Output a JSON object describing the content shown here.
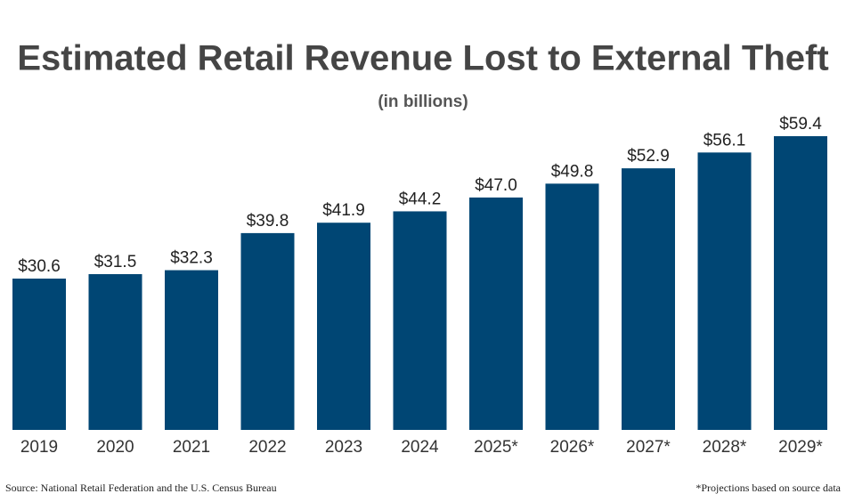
{
  "chart_data": {
    "type": "bar",
    "title": "Estimated Retail Revenue Lost to External Theft",
    "subtitle": "(in billions)",
    "categories": [
      "2019",
      "2020",
      "2021",
      "2022",
      "2023",
      "2024",
      "2025*",
      "2026*",
      "2027*",
      "2028*",
      "2029*"
    ],
    "values": [
      30.6,
      31.5,
      32.3,
      39.8,
      41.9,
      44.2,
      47.0,
      49.8,
      52.9,
      56.1,
      59.4
    ],
    "value_labels": [
      "$30.6",
      "$31.5",
      "$32.3",
      "$39.8",
      "$41.9",
      "$44.2",
      "$47.0",
      "$49.8",
      "$52.9",
      "$56.1",
      "$59.4"
    ],
    "color": "#004674",
    "source": "Source: National Retail Federation and the U.S. Census Bureau",
    "note": "*Projections based on source data"
  }
}
